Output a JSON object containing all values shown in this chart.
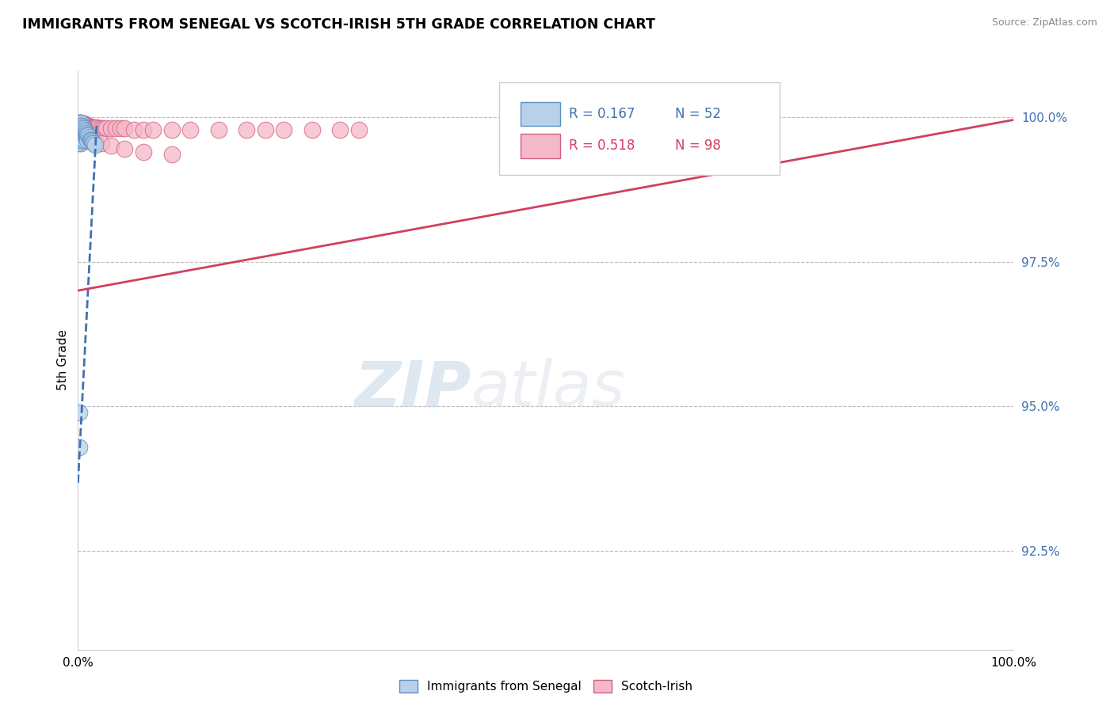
{
  "title": "IMMIGRANTS FROM SENEGAL VS SCOTCH-IRISH 5TH GRADE CORRELATION CHART",
  "source": "Source: ZipAtlas.com",
  "ylabel": "5th Grade",
  "ytick_labels": [
    "92.5%",
    "95.0%",
    "97.5%",
    "100.0%"
  ],
  "ytick_values": [
    0.925,
    0.95,
    0.975,
    1.0
  ],
  "ymin": 0.908,
  "ymax": 1.008,
  "xmin": 0.0,
  "xmax": 1.0,
  "legend_blue_r": "R = 0.167",
  "legend_blue_n": "N = 52",
  "legend_pink_r": "R = 0.518",
  "legend_pink_n": "N = 98",
  "legend_label_blue": "Immigrants from Senegal",
  "legend_label_pink": "Scotch-Irish",
  "watermark_zip": "ZIP",
  "watermark_atlas": "atlas",
  "blue_color": "#b8d0ea",
  "pink_color": "#f5b8c8",
  "blue_edge_color": "#6090c0",
  "pink_edge_color": "#d06080",
  "blue_line_color": "#4070b0",
  "pink_line_color": "#d04060",
  "blue_scatter_x": [
    0.001,
    0.001,
    0.001,
    0.001,
    0.001,
    0.001,
    0.002,
    0.002,
    0.002,
    0.002,
    0.002,
    0.002,
    0.002,
    0.003,
    0.003,
    0.003,
    0.003,
    0.003,
    0.003,
    0.003,
    0.003,
    0.004,
    0.004,
    0.004,
    0.004,
    0.004,
    0.005,
    0.005,
    0.005,
    0.005,
    0.006,
    0.006,
    0.006,
    0.006,
    0.007,
    0.007,
    0.008,
    0.008,
    0.009,
    0.009,
    0.01,
    0.01,
    0.011,
    0.012,
    0.013,
    0.014,
    0.015,
    0.016,
    0.017,
    0.018,
    0.001,
    0.001
  ],
  "blue_scatter_y": [
    0.9985,
    0.9975,
    0.997,
    0.9965,
    0.996,
    0.9955,
    0.999,
    0.9985,
    0.998,
    0.9975,
    0.997,
    0.9965,
    0.996,
    0.999,
    0.9985,
    0.998,
    0.9975,
    0.997,
    0.9965,
    0.996,
    0.9955,
    0.9985,
    0.9975,
    0.9968,
    0.9962,
    0.9958,
    0.9982,
    0.9975,
    0.9968,
    0.9962,
    0.998,
    0.9972,
    0.9965,
    0.996,
    0.9978,
    0.997,
    0.9975,
    0.9968,
    0.9972,
    0.9965,
    0.997,
    0.996,
    0.9968,
    0.9965,
    0.9962,
    0.996,
    0.9958,
    0.9956,
    0.9954,
    0.9952,
    0.949,
    0.943
  ],
  "pink_scatter_x": [
    0.001,
    0.001,
    0.001,
    0.001,
    0.001,
    0.001,
    0.001,
    0.001,
    0.001,
    0.001,
    0.002,
    0.002,
    0.002,
    0.002,
    0.002,
    0.002,
    0.002,
    0.002,
    0.002,
    0.003,
    0.003,
    0.003,
    0.003,
    0.003,
    0.003,
    0.003,
    0.004,
    0.004,
    0.004,
    0.004,
    0.005,
    0.005,
    0.005,
    0.005,
    0.006,
    0.006,
    0.006,
    0.007,
    0.007,
    0.008,
    0.008,
    0.009,
    0.01,
    0.01,
    0.011,
    0.012,
    0.013,
    0.014,
    0.015,
    0.016,
    0.017,
    0.018,
    0.02,
    0.022,
    0.025,
    0.028,
    0.03,
    0.035,
    0.04,
    0.045,
    0.05,
    0.06,
    0.07,
    0.08,
    0.1,
    0.12,
    0.15,
    0.18,
    0.2,
    0.22,
    0.25,
    0.28,
    0.3,
    0.007,
    0.008,
    0.012,
    0.018,
    0.025,
    0.035,
    0.05,
    0.07,
    0.1,
    0.003,
    0.003,
    0.003,
    0.004,
    0.004,
    0.005,
    0.005,
    0.005,
    0.006,
    0.006,
    0.006,
    0.007,
    0.007,
    0.008,
    0.008,
    0.009
  ],
  "pink_scatter_y": [
    0.999,
    0.9988,
    0.9986,
    0.9984,
    0.9982,
    0.998,
    0.9978,
    0.9976,
    0.9974,
    0.9972,
    0.999,
    0.9988,
    0.9986,
    0.9984,
    0.9982,
    0.998,
    0.9978,
    0.9976,
    0.9974,
    0.999,
    0.9988,
    0.9986,
    0.9984,
    0.9982,
    0.998,
    0.9978,
    0.9988,
    0.9986,
    0.9984,
    0.9982,
    0.9988,
    0.9986,
    0.9984,
    0.9982,
    0.9988,
    0.9986,
    0.9984,
    0.9986,
    0.9984,
    0.9986,
    0.9984,
    0.9984,
    0.9986,
    0.9984,
    0.9984,
    0.9982,
    0.9982,
    0.9982,
    0.9982,
    0.9982,
    0.9982,
    0.9982,
    0.9982,
    0.998,
    0.998,
    0.998,
    0.998,
    0.998,
    0.998,
    0.998,
    0.998,
    0.9978,
    0.9978,
    0.9978,
    0.9978,
    0.9978,
    0.9978,
    0.9978,
    0.9978,
    0.9978,
    0.9978,
    0.9978,
    0.9978,
    0.997,
    0.9968,
    0.9965,
    0.996,
    0.9955,
    0.995,
    0.9945,
    0.994,
    0.9935,
    0.9988,
    0.9986,
    0.9984,
    0.9986,
    0.9984,
    0.9984,
    0.9982,
    0.998,
    0.9982,
    0.998,
    0.9978,
    0.9976,
    0.9976,
    0.9974,
    0.9972,
    0.997
  ],
  "blue_trend_x0": 0.0,
  "blue_trend_x1": 0.02,
  "blue_trend_y0": 0.9368,
  "blue_trend_y1": 0.999,
  "pink_trend_x0": 0.0,
  "pink_trend_x1": 1.0,
  "pink_trend_y0": 0.97,
  "pink_trend_y1": 0.9995
}
